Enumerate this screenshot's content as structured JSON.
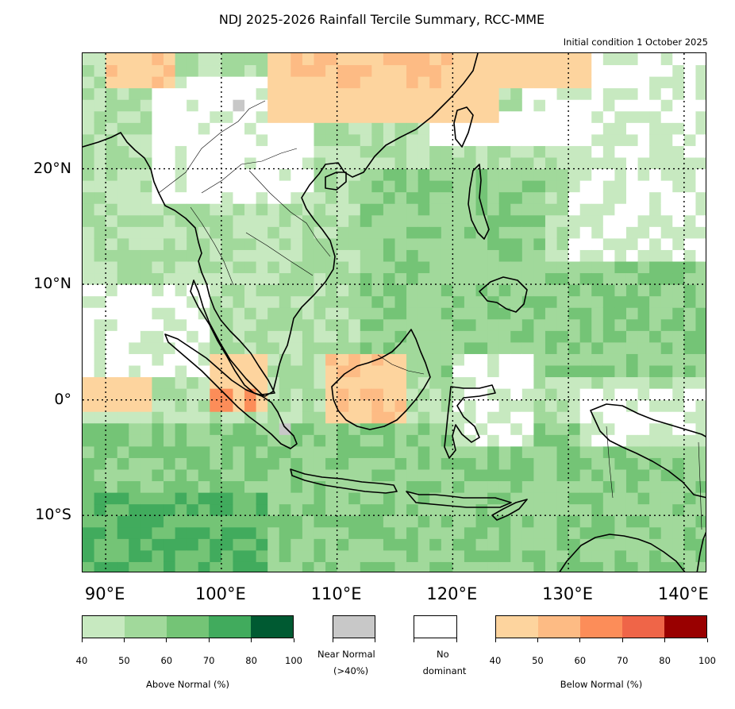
{
  "title": "NDJ 2025-2026 Rainfall Tercile Summary, RCC-MME",
  "subtitle": "Initial condition 1 October 2025",
  "map": {
    "lon_range": [
      88,
      142
    ],
    "lat_range": [
      -15,
      30
    ],
    "grid_lons": [
      90,
      100,
      110,
      120,
      130,
      140
    ],
    "grid_lats": [
      20,
      10,
      0,
      -10
    ],
    "lat_labels": [
      "20°N",
      "10°N",
      "0°",
      "10°S"
    ],
    "lon_labels": [
      "90°E",
      "100°E",
      "110°E",
      "120°E",
      "130°E",
      "140°E"
    ]
  },
  "colors": {
    "above": [
      "#c7e9c0",
      "#a1d99b",
      "#74c476",
      "#41ab5d",
      "#005a32"
    ],
    "below": [
      "#fdd49e",
      "#fdbb84",
      "#fc8d59",
      "#ef6548",
      "#990000"
    ],
    "near_normal": "#c8c8c8",
    "no_dominant": "#ffffff",
    "land_outline": "#000000"
  },
  "legend": {
    "above": {
      "title": "Above Normal (%)",
      "ticks": [
        "40",
        "50",
        "60",
        "70",
        "80",
        "100"
      ]
    },
    "near_normal": {
      "label_line1": "Near Normal",
      "label_line2": "(>40%)"
    },
    "no_dominant": {
      "label_line1": "No",
      "label_line2": "dominant"
    },
    "below": {
      "title": "Below Normal (%)",
      "ticks": [
        "40",
        "50",
        "60",
        "70",
        "80",
        "100"
      ]
    }
  }
}
